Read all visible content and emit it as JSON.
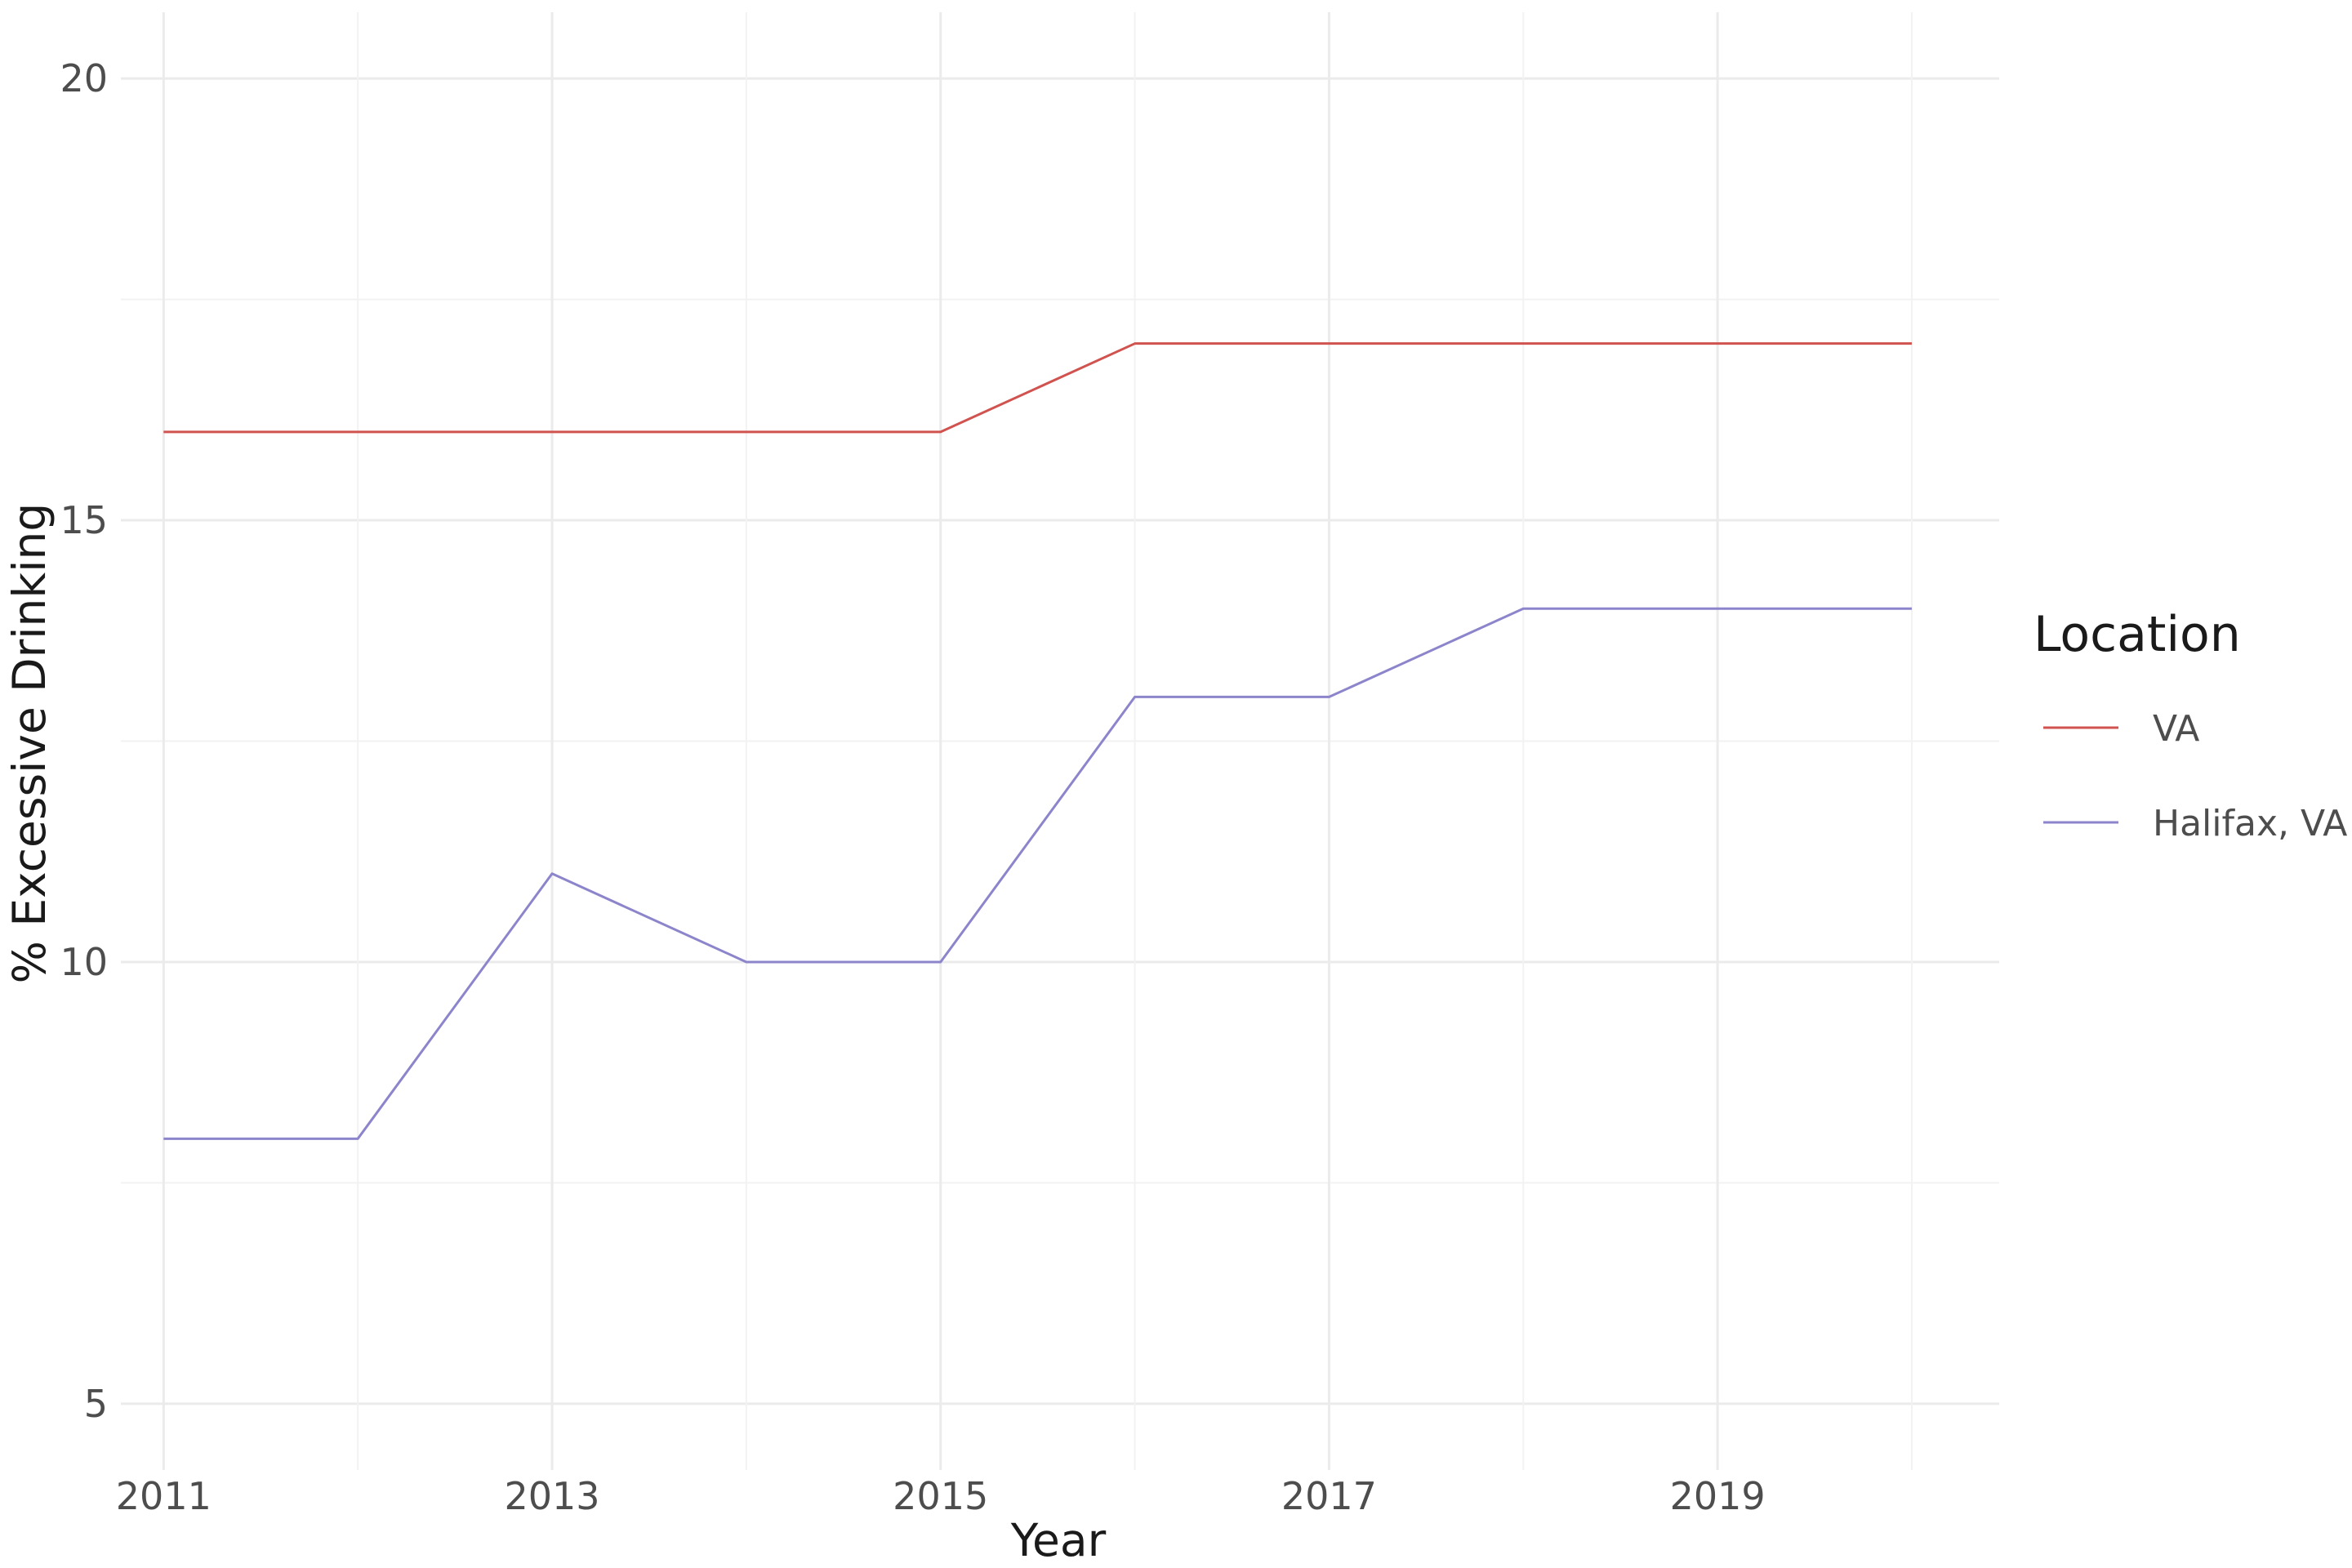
{
  "chart_data": {
    "type": "line",
    "title": "",
    "xlabel": "Year",
    "ylabel": "% Excessive Drinking",
    "x": [
      2011,
      2012,
      2013,
      2014,
      2015,
      2016,
      2017,
      2018,
      2019,
      2020
    ],
    "x_ticks": [
      2011,
      2013,
      2015,
      2017,
      2019
    ],
    "y_ticks": [
      5,
      10,
      15,
      20
    ],
    "xlim": [
      2010.78,
      2020.45
    ],
    "ylim": [
      4.25,
      20.75
    ],
    "grid": true,
    "legend": {
      "title": "Location",
      "position": "right"
    },
    "series": [
      {
        "name": "VA",
        "color": "#d0534f",
        "values": [
          16,
          16,
          16,
          16,
          16,
          17,
          17,
          17,
          17,
          17
        ]
      },
      {
        "name": "Halifax, VA",
        "color": "#8c85cc",
        "values": [
          8,
          8,
          11,
          10,
          10,
          13,
          13,
          14,
          14,
          14
        ]
      }
    ]
  }
}
